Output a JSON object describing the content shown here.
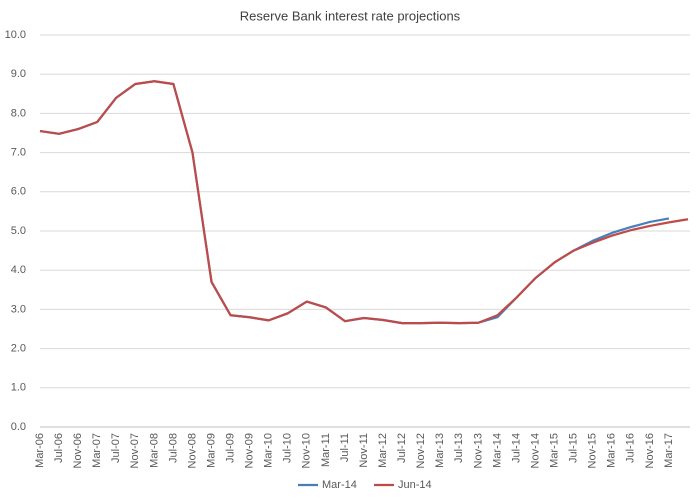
{
  "chart_data": {
    "type": "line",
    "title": "Reserve Bank interest rate projections",
    "categories": [
      "Mar-06",
      "Jul-06",
      "Nov-06",
      "Mar-07",
      "Jul-07",
      "Nov-07",
      "Mar-08",
      "Jul-08",
      "Nov-08",
      "Mar-09",
      "Jul-09",
      "Nov-09",
      "Mar-10",
      "Jul-10",
      "Nov-10",
      "Mar-11",
      "Jul-11",
      "Nov-11",
      "Mar-12",
      "Jul-12",
      "Nov-12",
      "Mar-13",
      "Jul-13",
      "Nov-13",
      "Mar-14",
      "Jul-14",
      "Nov-14",
      "Mar-15",
      "Jul-15",
      "Nov-15",
      "Mar-16",
      "Jul-16",
      "Nov-16",
      "Mar-17",
      null
    ],
    "series": [
      {
        "name": "Mar-14",
        "color": "#4a7ebb",
        "values": [
          7.55,
          7.48,
          7.6,
          7.78,
          8.4,
          8.75,
          8.82,
          8.75,
          7.0,
          3.7,
          2.85,
          2.8,
          2.72,
          2.9,
          3.2,
          3.05,
          2.7,
          2.78,
          2.73,
          2.65,
          2.65,
          2.66,
          2.65,
          2.66,
          2.8,
          3.3,
          3.8,
          4.2,
          4.5,
          4.75,
          4.95,
          5.1,
          5.23,
          5.32,
          null
        ]
      },
      {
        "name": "Jun-14",
        "color": "#be4b48",
        "values": [
          7.55,
          7.48,
          7.6,
          7.78,
          8.4,
          8.75,
          8.82,
          8.75,
          7.0,
          3.7,
          2.85,
          2.8,
          2.72,
          2.9,
          3.2,
          3.05,
          2.7,
          2.78,
          2.73,
          2.65,
          2.65,
          2.66,
          2.65,
          2.66,
          2.85,
          3.3,
          3.8,
          4.2,
          4.5,
          4.7,
          4.88,
          5.02,
          5.13,
          5.22,
          5.3
        ]
      }
    ],
    "ylim": [
      0,
      10
    ],
    "yticks": [
      {
        "value": 0,
        "label": "0.0"
      },
      {
        "value": 1,
        "label": "1.0"
      },
      {
        "value": 2,
        "label": "2.0"
      },
      {
        "value": 3,
        "label": "3.0"
      },
      {
        "value": 4,
        "label": "4.0"
      },
      {
        "value": 5,
        "label": "5.0"
      },
      {
        "value": 6,
        "label": "6.0"
      },
      {
        "value": 7,
        "label": "7.0"
      },
      {
        "value": 8,
        "label": "8.0"
      },
      {
        "value": 9,
        "label": "9.0"
      },
      {
        "value": 10,
        "label": "10.0"
      }
    ],
    "grid": true,
    "legend": "bottom"
  }
}
